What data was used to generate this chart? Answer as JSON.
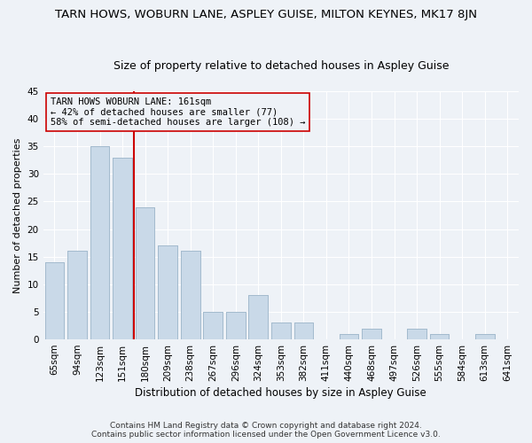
{
  "title": "TARN HOWS, WOBURN LANE, ASPLEY GUISE, MILTON KEYNES, MK17 8JN",
  "subtitle": "Size of property relative to detached houses in Aspley Guise",
  "xlabel": "Distribution of detached houses by size in Aspley Guise",
  "ylabel": "Number of detached properties",
  "categories": [
    "65sqm",
    "94sqm",
    "123sqm",
    "151sqm",
    "180sqm",
    "209sqm",
    "238sqm",
    "267sqm",
    "296sqm",
    "324sqm",
    "353sqm",
    "382sqm",
    "411sqm",
    "440sqm",
    "468sqm",
    "497sqm",
    "526sqm",
    "555sqm",
    "584sqm",
    "613sqm",
    "641sqm"
  ],
  "values": [
    14,
    16,
    35,
    33,
    24,
    17,
    16,
    5,
    5,
    8,
    3,
    3,
    0,
    1,
    2,
    0,
    2,
    1,
    0,
    1,
    0
  ],
  "bar_color": "#c9d9e8",
  "bar_edgecolor": "#a0b8cc",
  "ylim": [
    0,
    45
  ],
  "yticks": [
    0,
    5,
    10,
    15,
    20,
    25,
    30,
    35,
    40,
    45
  ],
  "vline_index": 3.5,
  "annotation_line1": "TARN HOWS WOBURN LANE: 161sqm",
  "annotation_line2": "← 42% of detached houses are smaller (77)",
  "annotation_line3": "58% of semi-detached houses are larger (108) →",
  "vline_color": "#cc0000",
  "annotation_box_edgecolor": "#cc0000",
  "footer_line1": "Contains HM Land Registry data © Crown copyright and database right 2024.",
  "footer_line2": "Contains public sector information licensed under the Open Government Licence v3.0.",
  "background_color": "#eef2f7",
  "grid_color": "#ffffff",
  "title_fontsize": 9.5,
  "subtitle_fontsize": 9,
  "xlabel_fontsize": 8.5,
  "ylabel_fontsize": 8,
  "tick_fontsize": 7.5,
  "annotation_fontsize": 7.5,
  "footer_fontsize": 6.5
}
